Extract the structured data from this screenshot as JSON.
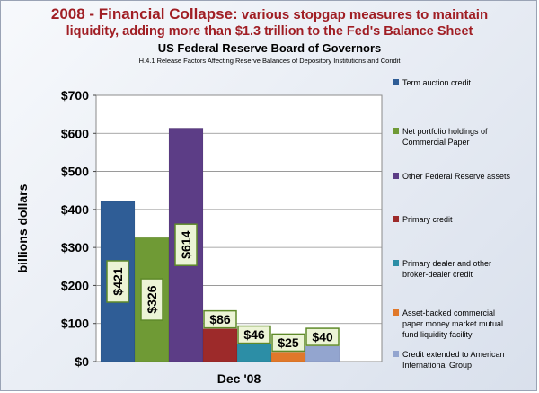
{
  "header": {
    "title_lead": "2008 - Financial Collapse:",
    "title_rest": "various stopgap measures to maintain",
    "title_line2": "liquidity, adding more than $1.3 trillion to the Fed's Balance Sheet",
    "subtitle": "US Federal Reserve Board of Governors",
    "note": "H.4.1 Release Factors Affecting Reserve Balances of Depository Institutions and Condit"
  },
  "chart_data": {
    "type": "bar",
    "xlabel": "Dec '08",
    "ylabel": "billions dollars",
    "ylim": [
      0,
      700
    ],
    "yticks": [
      0,
      100,
      200,
      300,
      400,
      500,
      600,
      700
    ],
    "ytick_labels": [
      "$0",
      "$100",
      "$200",
      "$300",
      "$400",
      "$500",
      "$600",
      "$700"
    ],
    "grid": true,
    "legend_position": "right",
    "series": [
      {
        "name": "Term auction credit",
        "value": 421,
        "label": "$421",
        "color": "#2f5d96",
        "label_vertical": true
      },
      {
        "name": "Net portfolio holdings of Commercial Paper",
        "value": 326,
        "label": "$326",
        "color": "#6f9a35",
        "label_vertical": true
      },
      {
        "name": "Other Federal Reserve assets",
        "value": 614,
        "label": "$614",
        "color": "#5c3d86",
        "label_vertical": true
      },
      {
        "name": "Primary credit",
        "value": 86,
        "label": "$86",
        "color": "#9d2a2a",
        "label_vertical": false
      },
      {
        "name": "Primary dealer and other broker-dealer credit",
        "value": 46,
        "label": "$46",
        "color": "#2c8ea6",
        "label_vertical": false
      },
      {
        "name": "Asset-backed commercial paper money market mutual fund liquidity facility",
        "value": 25,
        "label": "$25",
        "color": "#e0782a",
        "label_vertical": false
      },
      {
        "name": "Credit extended to American International Group",
        "value": 40,
        "label": "$40",
        "color": "#93a5cf",
        "label_vertical": false
      }
    ]
  },
  "legend": [
    {
      "lines": [
        "Term auction credit"
      ],
      "color": "#2f5d96"
    },
    {
      "lines": [
        "Net portfolio holdings of",
        "Commercial Paper"
      ],
      "color": "#6f9a35"
    },
    {
      "lines": [
        "Other Federal Reserve assets"
      ],
      "color": "#5c3d86"
    },
    {
      "lines": [
        "Primary credit"
      ],
      "color": "#9d2a2a"
    },
    {
      "lines": [
        "Primary dealer and other",
        "broker-dealer credit"
      ],
      "color": "#2c8ea6"
    },
    {
      "lines": [
        "Asset-backed commercial",
        "paper money market mutual",
        "fund liquidity facility"
      ],
      "color": "#e0782a"
    },
    {
      "lines": [
        "Credit extended to American",
        "International Group"
      ],
      "color": "#93a5cf"
    }
  ]
}
